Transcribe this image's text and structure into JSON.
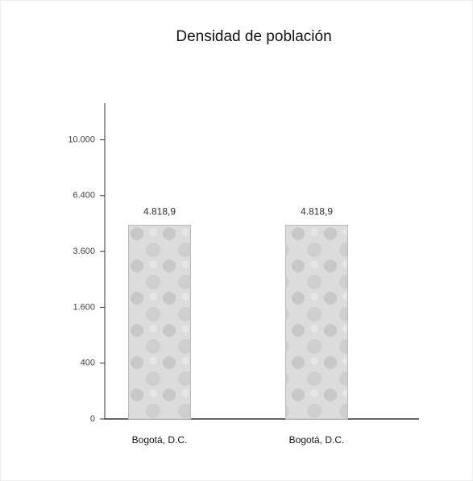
{
  "chart_data": {
    "type": "bar",
    "title": "Densidad de población",
    "categories": [
      "Bogotá, D.C.",
      "Bogotá, D.C."
    ],
    "values": [
      4818.9,
      4818.9
    ],
    "value_labels": [
      "4.818,9",
      "4.818,9"
    ],
    "color": "#d6d6d6",
    "yscale": "sqrt",
    "ylim": [
      0,
      12800
    ],
    "yticks": [
      0,
      400,
      {
        "value": 1600,
        "label": "1.600"
      },
      {
        "value": 3600,
        "label": "3.600"
      },
      {
        "value": 6400,
        "label": "6.400"
      },
      {
        "value": 10000,
        "label": "10.000"
      }
    ]
  }
}
